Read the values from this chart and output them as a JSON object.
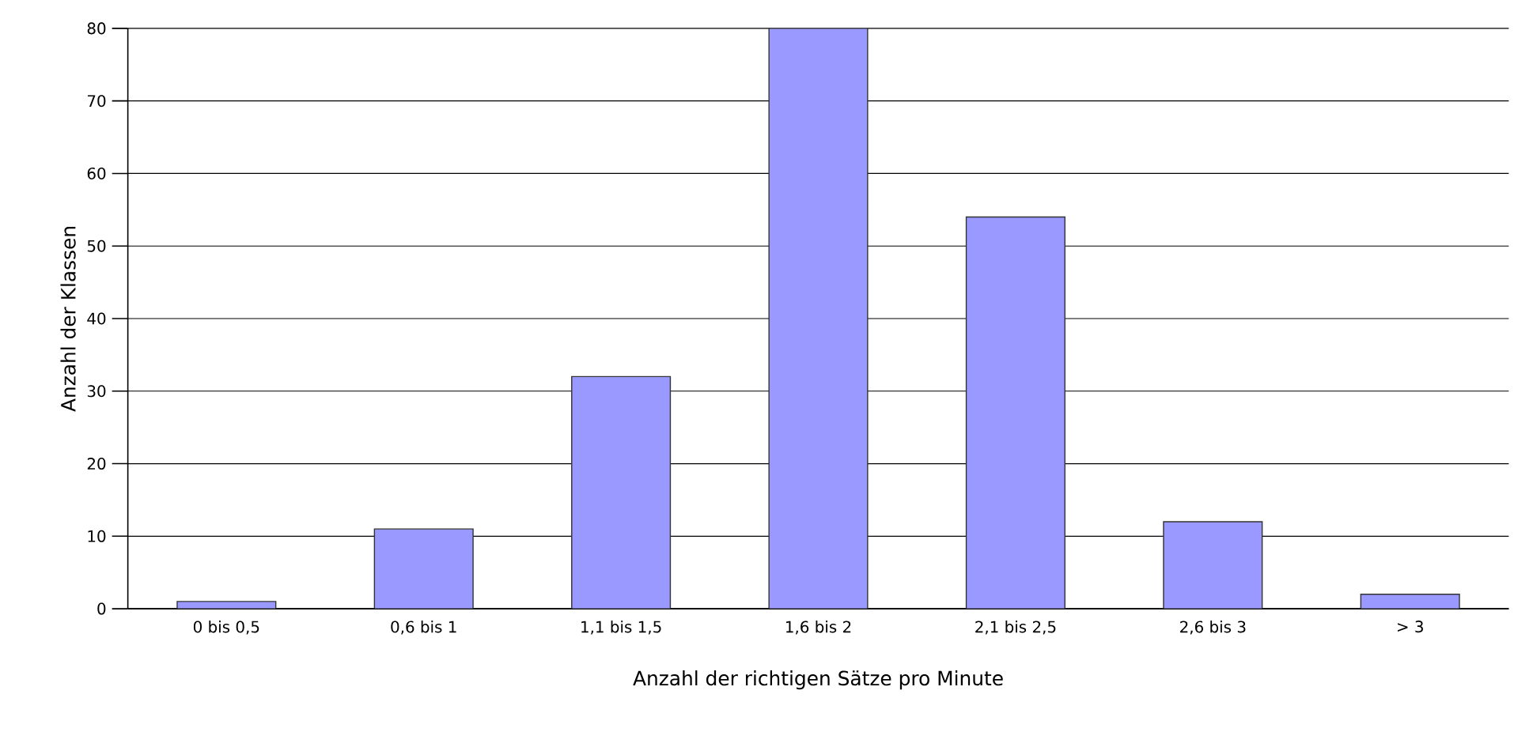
{
  "chart_data": {
    "type": "bar",
    "xlabel": "Anzahl der richtigen Sätze pro Minute",
    "ylabel": "Anzahl der Klassen",
    "categories": [
      "0 bis 0,5",
      "0,6 bis 1",
      "1,1 bis 1,5",
      "1,6 bis 2",
      "2,1 bis 2,5",
      "2,6 bis 3",
      "> 3"
    ],
    "values": [
      1,
      11,
      32,
      80,
      54,
      12,
      2
    ],
    "color": "#9999ff",
    "ylim": [
      0,
      80
    ],
    "yticks": [
      0,
      10,
      20,
      30,
      40,
      50,
      60,
      70,
      80
    ],
    "grid": "y"
  }
}
